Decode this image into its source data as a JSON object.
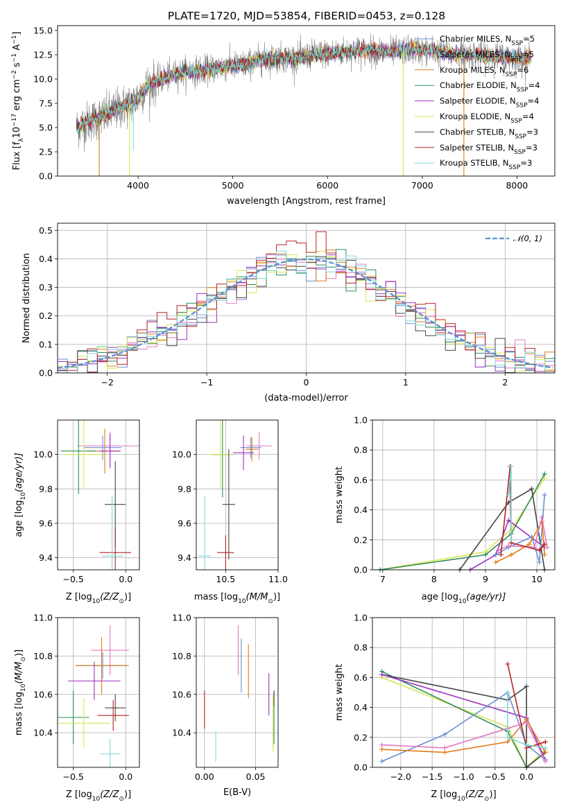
{
  "figure": {
    "title": "PLATE=1720, MJD=53854, FIBERID=0453, z=0.128"
  },
  "chart_data": [
    {
      "id": "spectrum",
      "type": "line",
      "xlabel": "wavelength [Angstrom, rest frame]",
      "ylabel": "Flux [f",
      "ylabel_math": {
        "lambda": "λ",
        "exp1": "−17",
        "mid": " erg cm",
        "exp2": "−2",
        "mid2": " s",
        "exp3": "−1",
        "mid3": " A",
        "exp4": "−1",
        "end": "]",
        "coef": "10"
      },
      "xlim": [
        3150,
        8400
      ],
      "ylim": [
        0,
        15.5
      ],
      "xticks": [
        4000,
        5000,
        6000,
        7000,
        8000
      ],
      "yticks": [
        "0.0",
        "2.5",
        "5.0",
        "7.5",
        "10.0",
        "12.5",
        "15.0"
      ],
      "grid": false,
      "legend_position": "upper-right",
      "series": [
        {
          "name": "Chabrier MILES, N",
          "sub": "SSP",
          "tail": "=5",
          "color": "#6b8fd6"
        },
        {
          "name": "Salpeter MILES, N",
          "sub": "SSP",
          "tail": "=5",
          "color": "#e377c2"
        },
        {
          "name": "Kroupa MILES, N",
          "sub": "SSP",
          "tail": "=6",
          "color": "#e07b1a"
        },
        {
          "name": "Chabrier ELODIE, N",
          "sub": "SSP",
          "tail": "=4",
          "color": "#2e8b57"
        },
        {
          "name": "Salpeter ELODIE, N",
          "sub": "SSP",
          "tail": "=4",
          "color": "#9b30c0"
        },
        {
          "name": "Kroupa ELODIE, N",
          "sub": "SSP",
          "tail": "=4",
          "color": "#d8e650"
        },
        {
          "name": "Chabrier STELIB, N",
          "sub": "SSP",
          "tail": "=3",
          "color": "#444444"
        },
        {
          "name": "Salpeter STELIB, N",
          "sub": "SSP",
          "tail": "=3",
          "color": "#b22222"
        },
        {
          "name": "Kroupa STELIB, N",
          "sub": "SSP",
          "tail": "=3",
          "color": "#7fd8d8"
        }
      ],
      "data_color": "#808080",
      "continuum": [
        [
          3350,
          5.0
        ],
        [
          3500,
          5.7
        ],
        [
          3650,
          6.2
        ],
        [
          3800,
          7.0
        ],
        [
          3950,
          7.6
        ],
        [
          4100,
          9.3
        ],
        [
          4300,
          10.2
        ],
        [
          4500,
          10.8
        ],
        [
          4700,
          10.9
        ],
        [
          4900,
          11.3
        ],
        [
          5100,
          11.4
        ],
        [
          5300,
          12.0
        ],
        [
          5500,
          12.2
        ],
        [
          5700,
          12.2
        ],
        [
          5900,
          12.6
        ],
        [
          6100,
          12.7
        ],
        [
          6300,
          12.9
        ],
        [
          6500,
          12.9
        ],
        [
          6700,
          12.8
        ],
        [
          6900,
          13.0
        ],
        [
          7100,
          12.9
        ],
        [
          7300,
          12.6
        ],
        [
          7500,
          12.5
        ],
        [
          7700,
          12.4
        ],
        [
          7900,
          12.2
        ],
        [
          8150,
          12.1
        ]
      ],
      "spikes": [
        {
          "x": 3590,
          "y_bottom": 0.0,
          "color": "#e07b1a"
        },
        {
          "x": 3910,
          "y_bottom": 0.0,
          "color": "#d8e650"
        },
        {
          "x": 3950,
          "y_bottom": 2.6,
          "color": "#7fd8d8"
        },
        {
          "x": 6800,
          "y_bottom": 0.0,
          "color": "#d8e650"
        },
        {
          "x": 7440,
          "y_bottom": 0.0,
          "color": "#e07b1a"
        }
      ]
    },
    {
      "id": "residuals",
      "type": "histogram",
      "xlabel": "(data-model)/error",
      "ylabel": "Normed distribution",
      "xlim": [
        -2.5,
        2.5
      ],
      "ylim": [
        0,
        0.525
      ],
      "xticks": [
        -2,
        -1,
        0,
        1,
        2
      ],
      "xtick_labels": [
        "−2",
        "−1",
        "0",
        "1",
        "2"
      ],
      "yticks": [
        "0.0",
        "0.1",
        "0.2",
        "0.3",
        "0.4",
        "0.5"
      ],
      "grid": true,
      "legend_position": "upper-right",
      "legend_label": "𝒩(0, 1)",
      "gaussian": {
        "mean": 0,
        "sigma": 1,
        "color": "#5b8fd6"
      },
      "bin_width": 0.1,
      "series_colors": [
        "#6b8fd6",
        "#e377c2",
        "#e07b1a",
        "#2e8b57",
        "#9b30c0",
        "#d8e650",
        "#444444",
        "#b22222",
        "#7fd8d8"
      ]
    },
    {
      "id": "age_vs_Z",
      "type": "errorbar",
      "xlabel": "Z [log",
      "xlabel_math": {
        "sub": "10",
        "mid": "(Z/Z",
        "sub2": "⊙",
        "end": ")]"
      },
      "ylabel": "age  [log",
      "ylabel_math": {
        "sub": "10",
        "end": "(age/yr)]"
      },
      "xlim": [
        -0.65,
        0.13
      ],
      "ylim": [
        9.33,
        10.2
      ],
      "xticks": [
        -0.5,
        0.0
      ],
      "xtick_labels": [
        "−0.5",
        "0.0"
      ],
      "yticks": [
        9.4,
        9.6,
        9.8,
        10.0
      ],
      "ytick_labels": [
        "9.4",
        "9.6",
        "9.8",
        "10.0"
      ],
      "grid": true,
      "points": [
        {
          "x": -0.15,
          "y": 10.05,
          "xerr": 0.3,
          "yerr": 0.08,
          "color": "#e377c2"
        },
        {
          "x": -0.22,
          "y": 10.04,
          "xerr": 0.18,
          "yerr": 0.07,
          "color": "#6b8fd6"
        },
        {
          "x": -0.2,
          "y": 10.02,
          "xerr": 0.15,
          "yerr": 0.13,
          "color": "#e07b1a"
        },
        {
          "x": -0.45,
          "y": 10.02,
          "xerr": 0.17,
          "yerr": 0.25,
          "color": "#2e8b57"
        },
        {
          "x": -0.15,
          "y": 10.02,
          "xerr": 0.1,
          "yerr": 0.1,
          "color": "#9b30c0"
        },
        {
          "x": -0.4,
          "y": 10.0,
          "xerr": 0.2,
          "yerr": 0.2,
          "color": "#d8e650"
        },
        {
          "x": -0.1,
          "y": 9.71,
          "xerr": 0.1,
          "yerr": 0.25,
          "color": "#444444"
        },
        {
          "x": -0.1,
          "y": 9.43,
          "xerr": 0.15,
          "yerr": 0.15,
          "color": "#b22222"
        },
        {
          "x": -0.13,
          "y": 9.41,
          "xerr": 0.1,
          "yerr": 0.35,
          "color": "#7fd8d8"
        }
      ]
    },
    {
      "id": "age_vs_mass",
      "type": "errorbar",
      "xlabel": "mass [log",
      "xlabel_math": {
        "sub": "10",
        "mid": "(M/M",
        "sub2": "⊙",
        "end": ")]"
      },
      "xlim": [
        10.22,
        11.0
      ],
      "ylim": [
        9.33,
        10.2
      ],
      "xticks": [
        10.5,
        11.0
      ],
      "xtick_labels": [
        "10.5",
        "11.0"
      ],
      "yticks": [
        9.4,
        9.6,
        9.8,
        10.0
      ],
      "ytick_labels": [
        "9.4",
        "9.6",
        "9.8",
        "10.0"
      ],
      "grid": true,
      "points": [
        {
          "x": 10.82,
          "y": 10.05,
          "xerr": 0.12,
          "yerr": 0.08,
          "color": "#e377c2"
        },
        {
          "x": 10.74,
          "y": 10.04,
          "xerr": 0.1,
          "yerr": 0.06,
          "color": "#6b8fd6"
        },
        {
          "x": 10.75,
          "y": 10.03,
          "xerr": 0.06,
          "yerr": 0.07,
          "color": "#e07b1a"
        },
        {
          "x": 10.47,
          "y": 10.0,
          "xerr": 0.1,
          "yerr": 0.25,
          "color": "#2e8b57"
        },
        {
          "x": 10.67,
          "y": 10.01,
          "xerr": 0.1,
          "yerr": 0.1,
          "color": "#9b30c0"
        },
        {
          "x": 10.45,
          "y": 10.0,
          "xerr": 0.12,
          "yerr": 0.2,
          "color": "#d8e650"
        },
        {
          "x": 10.53,
          "y": 9.71,
          "xerr": 0.06,
          "yerr": 0.32,
          "color": "#444444"
        },
        {
          "x": 10.5,
          "y": 9.43,
          "xerr": 0.08,
          "yerr": 0.1,
          "color": "#b22222"
        },
        {
          "x": 10.3,
          "y": 9.41,
          "xerr": 0.06,
          "yerr": 0.35,
          "color": "#7fd8d8"
        }
      ]
    },
    {
      "id": "weight_vs_age",
      "type": "line",
      "xlabel": "age  [log",
      "xlabel_math": {
        "sub": "10",
        "end": "(age/yr)]"
      },
      "ylabel": "mass weight",
      "xlim": [
        6.8,
        10.35
      ],
      "ylim": [
        0,
        1.0
      ],
      "xticks": [
        7,
        8,
        9,
        10
      ],
      "xtick_labels": [
        "7",
        "8",
        "9",
        "10"
      ],
      "yticks": [
        0.0,
        0.2,
        0.4,
        0.6,
        0.8,
        1.0
      ],
      "ytick_labels": [
        "0.0",
        "0.2",
        "0.4",
        "0.6",
        "0.8",
        "1.0"
      ],
      "grid": true,
      "series": [
        {
          "color": "#d8e650",
          "x": [
            6.95,
            9.0,
            9.5,
            10.15
          ],
          "y": [
            0.0,
            0.12,
            0.27,
            0.61
          ]
        },
        {
          "color": "#2e8b57",
          "x": [
            6.95,
            9.0,
            9.5,
            10.15
          ],
          "y": [
            0.0,
            0.1,
            0.24,
            0.64
          ]
        },
        {
          "color": "#444444",
          "x": [
            8.5,
            9.45,
            9.9,
            10.15
          ],
          "y": [
            0.0,
            0.45,
            0.54,
            0.0
          ]
        },
        {
          "color": "#9b30c0",
          "x": [
            8.7,
            9.2,
            9.45,
            10.15
          ],
          "y": [
            0.0,
            0.1,
            0.33,
            0.15
          ]
        },
        {
          "color": "#6b8fd6",
          "x": [
            9.2,
            9.45,
            9.9,
            10.05,
            10.15
          ],
          "y": [
            0.1,
            0.15,
            0.22,
            0.05,
            0.5
          ]
        },
        {
          "color": "#e07b1a",
          "x": [
            9.2,
            9.5,
            9.85,
            10.1,
            10.15
          ],
          "y": [
            0.05,
            0.1,
            0.17,
            0.32,
            0.1
          ]
        },
        {
          "color": "#e377c2",
          "x": [
            9.25,
            9.45,
            9.95,
            10.1,
            10.2
          ],
          "y": [
            0.13,
            0.16,
            0.15,
            0.35,
            0.15
          ]
        },
        {
          "color": "#b22222",
          "x": [
            9.3,
            9.48,
            9.5,
            10.05,
            10.15
          ],
          "y": [
            0.1,
            0.69,
            0.18,
            0.13,
            0.17
          ]
        },
        {
          "color": "#7fd8d8",
          "x": [
            9.45,
            9.5,
            9.5
          ],
          "y": [
            0.5,
            0.69,
            0.2
          ]
        }
      ]
    },
    {
      "id": "mass_vs_Z",
      "type": "errorbar",
      "xlabel": "Z [log",
      "xlabel_math": {
        "sub": "10",
        "mid": "(Z/Z",
        "sub2": "⊙",
        "end": ")]"
      },
      "ylabel": "mass [log",
      "ylabel_math": {
        "sub": "10",
        "mid": "(M/M",
        "sub2": "⊙",
        "end": ")]"
      },
      "xlim": [
        -0.65,
        0.13
      ],
      "ylim": [
        10.22,
        11.0
      ],
      "xticks": [
        -0.5,
        0.0
      ],
      "xtick_labels": [
        "−0.5",
        "0.0"
      ],
      "yticks": [
        10.4,
        10.6,
        10.8,
        11.0
      ],
      "ytick_labels": [
        "10.4",
        "10.6",
        "10.8",
        "11.0"
      ],
      "grid": true,
      "points": [
        {
          "x": -0.15,
          "y": 10.83,
          "xerr": 0.18,
          "yerr": 0.13,
          "color": "#e377c2"
        },
        {
          "x": -0.22,
          "y": 10.75,
          "xerr": 0.25,
          "yerr": 0.07,
          "color": "#6b8fd6"
        },
        {
          "x": -0.23,
          "y": 10.75,
          "xerr": 0.25,
          "yerr": 0.15,
          "color": "#e07b1a"
        },
        {
          "x": -0.5,
          "y": 10.48,
          "xerr": 0.15,
          "yerr": 0.14,
          "color": "#2e8b57"
        },
        {
          "x": -0.3,
          "y": 10.67,
          "xerr": 0.25,
          "yerr": 0.1,
          "color": "#9b30c0"
        },
        {
          "x": -0.4,
          "y": 10.45,
          "xerr": 0.25,
          "yerr": 0.13,
          "color": "#d8e650"
        },
        {
          "x": -0.1,
          "y": 10.53,
          "xerr": 0.1,
          "yerr": 0.07,
          "color": "#444444"
        },
        {
          "x": -0.12,
          "y": 10.49,
          "xerr": 0.15,
          "yerr": 0.08,
          "color": "#b22222"
        },
        {
          "x": -0.15,
          "y": 10.29,
          "xerr": 0.1,
          "yerr": 0.08,
          "color": "#7fd8d8"
        }
      ]
    },
    {
      "id": "mass_vs_ebv",
      "type": "errorbar",
      "xlabel": "E(B-V)",
      "xlim": [
        -0.008,
        0.072
      ],
      "ylim": [
        10.22,
        11.0
      ],
      "xticks": [
        0.0,
        0.05
      ],
      "xtick_labels": [
        "0.00",
        "0.05"
      ],
      "yticks": [
        10.4,
        10.6,
        10.8,
        11.0
      ],
      "ytick_labels": [
        "10.4",
        "10.6",
        "10.8",
        "11.0"
      ],
      "grid": true,
      "points": [
        {
          "x": 0.033,
          "y": 10.83,
          "xerr": 0,
          "yerr": 0.13,
          "color": "#e377c2"
        },
        {
          "x": 0.036,
          "y": 10.75,
          "xerr": 0,
          "yerr": 0.14,
          "color": "#6b8fd6"
        },
        {
          "x": 0.043,
          "y": 10.72,
          "xerr": 0,
          "yerr": 0.14,
          "color": "#e07b1a"
        },
        {
          "x": 0.068,
          "y": 10.48,
          "xerr": 0,
          "yerr": 0.14,
          "color": "#2e8b57"
        },
        {
          "x": 0.063,
          "y": 10.6,
          "xerr": 0,
          "yerr": 0.11,
          "color": "#9b30c0"
        },
        {
          "x": 0.067,
          "y": 10.45,
          "xerr": 0,
          "yerr": 0.15,
          "color": "#d8e650"
        },
        {
          "x": 0.068,
          "y": 10.58,
          "xerr": 0,
          "yerr": 0.04,
          "color": "#444444"
        },
        {
          "x": 0.0,
          "y": 10.52,
          "xerr": 0,
          "yerr": 0.1,
          "color": "#b22222"
        },
        {
          "x": 0.011,
          "y": 10.33,
          "xerr": 0,
          "yerr": 0.08,
          "color": "#7fd8d8"
        }
      ]
    },
    {
      "id": "weight_vs_Z",
      "type": "line",
      "xlabel": "Z [log",
      "xlabel_math": {
        "sub": "10",
        "mid": "(Z/Z",
        "sub2": "⊙",
        "end": ")]"
      },
      "ylabel": "mass weight",
      "xlim": [
        -2.45,
        0.45
      ],
      "ylim": [
        0,
        1.0
      ],
      "xticks": [
        -2.0,
        -1.5,
        -1.0,
        -0.5,
        0.0
      ],
      "xtick_labels": [
        "−2.0",
        "−1.5",
        "−1.0",
        "−0.5",
        "0.0"
      ],
      "yticks": [
        0.0,
        0.2,
        0.4,
        0.6,
        0.8,
        1.0
      ],
      "ytick_labels": [
        "0.0",
        "0.2",
        "0.4",
        "0.6",
        "0.8",
        "1.0"
      ],
      "grid": true,
      "series": [
        {
          "color": "#d8e650",
          "x": [
            -2.3,
            -0.3,
            0.0,
            0.3
          ],
          "y": [
            0.6,
            0.27,
            0.0,
            0.12
          ]
        },
        {
          "color": "#2e8b57",
          "x": [
            -2.3,
            -0.3,
            0.0,
            0.3
          ],
          "y": [
            0.64,
            0.24,
            0.0,
            0.1
          ]
        },
        {
          "color": "#444444",
          "x": [
            -2.3,
            -0.3,
            0.0,
            0.0,
            0.3
          ],
          "y": [
            0.62,
            0.45,
            0.54,
            0.0,
            0.1
          ]
        },
        {
          "color": "#9b30c0",
          "x": [
            -2.3,
            0.0,
            0.3
          ],
          "y": [
            0.62,
            0.33,
            0.05
          ]
        },
        {
          "color": "#6b8fd6",
          "x": [
            -2.3,
            -1.3,
            -0.3,
            0.0,
            0.3
          ],
          "y": [
            0.04,
            0.22,
            0.5,
            0.15,
            0.05
          ]
        },
        {
          "color": "#e07b1a",
          "x": [
            -2.3,
            -1.3,
            -0.3,
            0.0,
            0.3
          ],
          "y": [
            0.12,
            0.1,
            0.17,
            0.32,
            0.1
          ]
        },
        {
          "color": "#e377c2",
          "x": [
            -2.3,
            -1.3,
            -0.3,
            0.0,
            0.3
          ],
          "y": [
            0.15,
            0.13,
            0.26,
            0.3,
            0.04
          ]
        },
        {
          "color": "#b22222",
          "x": [
            -0.3,
            0.0,
            0.3
          ],
          "y": [
            0.69,
            0.13,
            0.17
          ]
        },
        {
          "color": "#7fd8d8",
          "x": [
            -0.3,
            -0.3,
            0.0,
            0.3
          ],
          "y": [
            0.5,
            0.2,
            0.15,
            0.13
          ]
        }
      ]
    }
  ]
}
